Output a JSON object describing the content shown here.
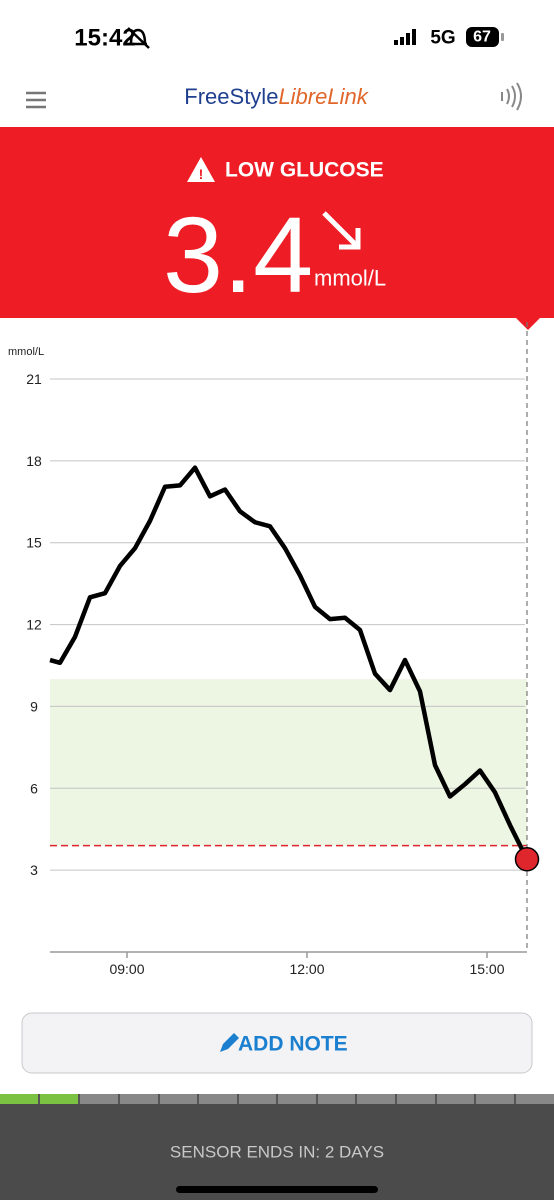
{
  "status_bar": {
    "time": "15:42",
    "network": "5G",
    "battery": "67"
  },
  "header": {
    "brand_main": "FreeStyle",
    "brand_accent": "LibreLink"
  },
  "reading": {
    "status": "LOW GLUCOSE",
    "value": "3.4",
    "unit": "mmol/L"
  },
  "chart_data": {
    "type": "line",
    "y_label": "mmol/L",
    "series": [
      {
        "color": "#000000",
        "x": [
          "07:43",
          "07:53",
          "08:08",
          "08:23",
          "08:38",
          "08:53",
          "09:08",
          "09:23",
          "09:38",
          "09:53",
          "10:08",
          "10:23",
          "10:38",
          "10:53",
          "11:08",
          "11:23",
          "11:38",
          "11:53",
          "12:08",
          "12:23",
          "12:38",
          "12:53",
          "13:08",
          "13:23",
          "13:38",
          "13:53",
          "14:08",
          "14:23",
          "14:38",
          "14:53",
          "15:08",
          "15:23",
          "15:40"
        ],
        "values": [
          10.7,
          10.6,
          11.55,
          13.0,
          13.15,
          14.15,
          14.8,
          15.8,
          17.05,
          17.1,
          17.75,
          16.7,
          16.95,
          16.15,
          15.75,
          15.6,
          14.8,
          13.8,
          12.65,
          12.2,
          12.25,
          11.8,
          10.2,
          9.6,
          10.7,
          9.55,
          6.85,
          5.7,
          6.15,
          6.65,
          5.85,
          4.65,
          3.4
        ]
      }
    ],
    "xlim": [
      "07:43",
      "15:40"
    ],
    "xticks": [
      "09:00",
      "12:00",
      "15:00"
    ],
    "ylim": [
      0,
      21
    ],
    "yticks": [
      3,
      6,
      9,
      12,
      15,
      18,
      21
    ],
    "target_range": [
      3.9,
      10
    ],
    "target_color": "#edf5e3",
    "low_line_color": "#e0262d",
    "grid": true
  },
  "button": {
    "label": "ADD NOTE"
  },
  "footer": {
    "text": "SENSOR ENDS IN: 2 DAYS"
  }
}
